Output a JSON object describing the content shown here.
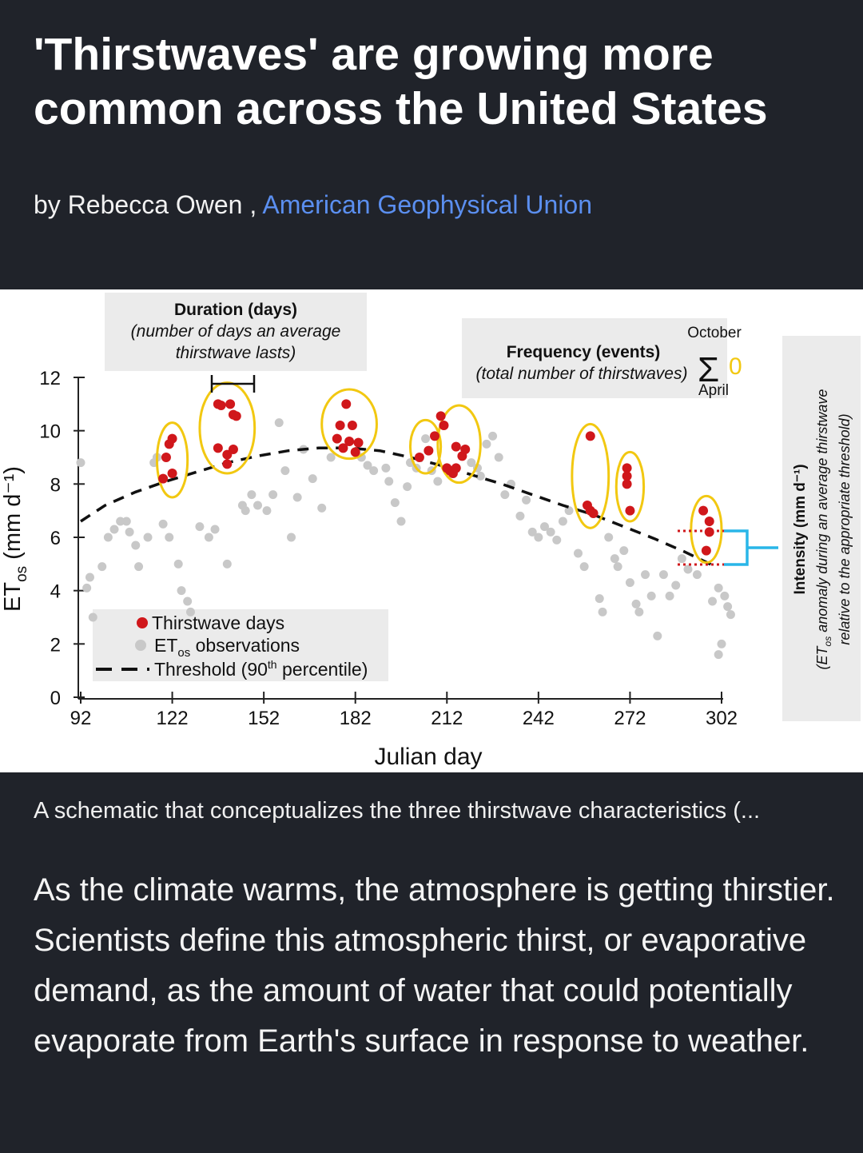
{
  "article": {
    "title": "'Thirstwaves' are growing more common across the United States",
    "byline_prefix": "by Rebecca Owen ,",
    "publisher": "American Geophysical Union",
    "caption": "A schematic that conceptualizes the three thirstwave characteristics (...",
    "body": "As the climate warms, the atmosphere is getting thirstier. Scientists define this atmospheric thirst, or evaporative demand, as the amount of water that could potentially evaporate from Earth's surface in response to weather."
  },
  "colors": {
    "background": "#20232a",
    "link": "#5b8ff0",
    "thirstwave_dot": "#d0171b",
    "observation_dot": "#c8c8c8",
    "ellipse": "#f2c811",
    "intensity_bracket": "#29b6e8",
    "panel": "#ebebeb"
  },
  "chart_data": {
    "type": "scatter",
    "xlabel": "Julian day",
    "ylabel_main": "ET",
    "ylabel_sub": "os",
    "ylabel_unit": "(mm d⁻¹)",
    "x_ticks": [
      "92",
      "122",
      "152",
      "182",
      "212",
      "242",
      "272",
      "302"
    ],
    "y_ticks": [
      "0",
      "2",
      "4",
      "6",
      "8",
      "10",
      "12"
    ],
    "xlim": [
      92,
      302
    ],
    "ylim": [
      0,
      12
    ],
    "legend": {
      "thirstwave": "Thirstwave days",
      "obs_main": "ET",
      "obs_sub": "os",
      "obs_rest": " observations",
      "threshold": "Threshold (90",
      "threshold_sup": "th",
      "threshold_end": " percentile)"
    },
    "annotations": {
      "duration_title": "Duration (days)",
      "duration_line1": "(number of days an average",
      "duration_line2": "thirstwave lasts)",
      "frequency_title": "Frequency (events)",
      "frequency_desc": "(total number of thirstwaves)",
      "october": "October",
      "april": "April",
      "sigma": "Σ",
      "sigma_zero": "0",
      "intensity_title": "Intensity (mm d⁻¹)",
      "intensity_line1_pre": "(ET",
      "intensity_line1_sub": "os",
      "intensity_line1_post": " anomaly during an average thirstwave",
      "intensity_line2": "relative to the appropriate threshold)"
    },
    "threshold": [
      [
        92,
        6.6
      ],
      [
        100,
        7.2
      ],
      [
        110,
        7.7
      ],
      [
        120,
        8.1
      ],
      [
        130,
        8.45
      ],
      [
        140,
        8.8
      ],
      [
        150,
        9.05
      ],
      [
        160,
        9.25
      ],
      [
        170,
        9.35
      ],
      [
        180,
        9.35
      ],
      [
        190,
        9.25
      ],
      [
        200,
        9.0
      ],
      [
        210,
        8.7
      ],
      [
        220,
        8.35
      ],
      [
        230,
        8.0
      ],
      [
        240,
        7.6
      ],
      [
        250,
        7.2
      ],
      [
        260,
        6.85
      ],
      [
        270,
        6.4
      ],
      [
        280,
        5.95
      ],
      [
        290,
        5.45
      ],
      [
        300,
        4.9
      ]
    ],
    "thirstwave_days": [
      [
        121,
        9.5
      ],
      [
        122,
        9.7
      ],
      [
        120,
        9.0
      ],
      [
        122,
        8.4
      ],
      [
        119,
        8.2
      ],
      [
        137,
        11.0
      ],
      [
        138,
        10.95
      ],
      [
        141,
        11.0
      ],
      [
        142,
        10.6
      ],
      [
        143,
        10.55
      ],
      [
        137,
        9.35
      ],
      [
        140,
        9.1
      ],
      [
        142,
        9.3
      ],
      [
        140,
        8.75
      ],
      [
        179,
        11.0
      ],
      [
        177,
        10.2
      ],
      [
        181,
        10.2
      ],
      [
        176,
        9.7
      ],
      [
        180,
        9.6
      ],
      [
        183,
        9.55
      ],
      [
        178,
        9.35
      ],
      [
        182,
        9.2
      ],
      [
        203,
        9.0
      ],
      [
        206,
        9.25
      ],
      [
        208,
        9.8
      ],
      [
        210,
        10.55
      ],
      [
        211,
        10.2
      ],
      [
        212,
        8.6
      ],
      [
        213,
        8.5
      ],
      [
        214,
        8.4
      ],
      [
        215,
        9.4
      ],
      [
        217,
        9.05
      ],
      [
        218,
        9.3
      ],
      [
        215,
        8.6
      ],
      [
        259,
        9.8
      ],
      [
        258,
        7.2
      ],
      [
        259,
        7.0
      ],
      [
        260,
        6.9
      ],
      [
        271,
        8.6
      ],
      [
        271,
        8.3
      ],
      [
        271,
        8.0
      ],
      [
        272,
        7.0
      ],
      [
        296,
        7.0
      ],
      [
        298,
        6.6
      ],
      [
        298,
        6.2
      ],
      [
        297,
        5.5
      ]
    ],
    "observations": [
      [
        92,
        8.8
      ],
      [
        95,
        4.5
      ],
      [
        94,
        4.1
      ],
      [
        96,
        3.0
      ],
      [
        99,
        4.9
      ],
      [
        101,
        6.0
      ],
      [
        103,
        6.3
      ],
      [
        105,
        6.6
      ],
      [
        107,
        6.6
      ],
      [
        108,
        6.2
      ],
      [
        110,
        5.7
      ],
      [
        111,
        4.9
      ],
      [
        114,
        6.0
      ],
      [
        116,
        8.8
      ],
      [
        117,
        9.0
      ],
      [
        119,
        6.5
      ],
      [
        121,
        6.0
      ],
      [
        124,
        5.0
      ],
      [
        125,
        4.0
      ],
      [
        127,
        3.6
      ],
      [
        128,
        3.2
      ],
      [
        131,
        6.4
      ],
      [
        134,
        6.0
      ],
      [
        136,
        6.3
      ],
      [
        140,
        5.0
      ],
      [
        145,
        7.2
      ],
      [
        146,
        7.0
      ],
      [
        148,
        7.6
      ],
      [
        150,
        7.2
      ],
      [
        153,
        7.0
      ],
      [
        155,
        7.6
      ],
      [
        157,
        10.3
      ],
      [
        159,
        8.5
      ],
      [
        161,
        6.0
      ],
      [
        163,
        7.5
      ],
      [
        165,
        9.3
      ],
      [
        168,
        8.2
      ],
      [
        171,
        7.1
      ],
      [
        174,
        9.0
      ],
      [
        184,
        9.0
      ],
      [
        186,
        8.7
      ],
      [
        188,
        8.5
      ],
      [
        192,
        8.6
      ],
      [
        193,
        8.1
      ],
      [
        195,
        7.3
      ],
      [
        197,
        6.6
      ],
      [
        199,
        7.9
      ],
      [
        200,
        8.8
      ],
      [
        202,
        8.6
      ],
      [
        205,
        9.7
      ],
      [
        207,
        8.5
      ],
      [
        209,
        8.1
      ],
      [
        220,
        8.8
      ],
      [
        222,
        8.6
      ],
      [
        223,
        8.3
      ],
      [
        225,
        9.5
      ],
      [
        227,
        9.8
      ],
      [
        229,
        9.0
      ],
      [
        231,
        7.6
      ],
      [
        233,
        8.0
      ],
      [
        236,
        6.8
      ],
      [
        238,
        7.4
      ],
      [
        240,
        6.2
      ],
      [
        242,
        6.0
      ],
      [
        244,
        6.4
      ],
      [
        246,
        6.2
      ],
      [
        248,
        5.9
      ],
      [
        250,
        6.6
      ],
      [
        252,
        7.0
      ],
      [
        255,
        5.4
      ],
      [
        257,
        4.9
      ],
      [
        262,
        3.7
      ],
      [
        263,
        3.2
      ],
      [
        265,
        6.0
      ],
      [
        267,
        5.2
      ],
      [
        268,
        4.9
      ],
      [
        270,
        5.5
      ],
      [
        272,
        4.3
      ],
      [
        274,
        3.5
      ],
      [
        275,
        3.2
      ],
      [
        277,
        4.6
      ],
      [
        279,
        3.8
      ],
      [
        281,
        2.3
      ],
      [
        283,
        4.6
      ],
      [
        285,
        3.8
      ],
      [
        287,
        4.2
      ],
      [
        289,
        5.2
      ],
      [
        291,
        4.8
      ],
      [
        294,
        4.6
      ],
      [
        301,
        4.1
      ],
      [
        303,
        3.8
      ],
      [
        304,
        3.4
      ],
      [
        305,
        3.1
      ],
      [
        302,
        2.0
      ],
      [
        301,
        1.6
      ],
      [
        299,
        3.6
      ]
    ],
    "duration_ellipses": [
      {
        "center_day": 122,
        "center_value": 8.9,
        "half_width_days": 5,
        "half_height": 1.4
      },
      {
        "center_day": 140,
        "center_value": 10.1,
        "half_width_days": 9,
        "half_height": 1.7
      },
      {
        "center_day": 180,
        "center_value": 10.25,
        "half_width_days": 9,
        "half_height": 1.3
      },
      {
        "center_day": 205,
        "center_value": 9.4,
        "half_width_days": 5,
        "half_height": 1.0
      },
      {
        "center_day": 216,
        "center_value": 9.5,
        "half_width_days": 7,
        "half_height": 1.45
      },
      {
        "center_day": 259,
        "center_value": 8.3,
        "half_width_days": 6,
        "half_height": 1.95
      },
      {
        "center_day": 272,
        "center_value": 7.9,
        "half_width_days": 4.5,
        "half_height": 1.3
      },
      {
        "center_day": 297,
        "center_value": 6.3,
        "half_width_days": 5,
        "half_height": 1.25
      }
    ]
  }
}
